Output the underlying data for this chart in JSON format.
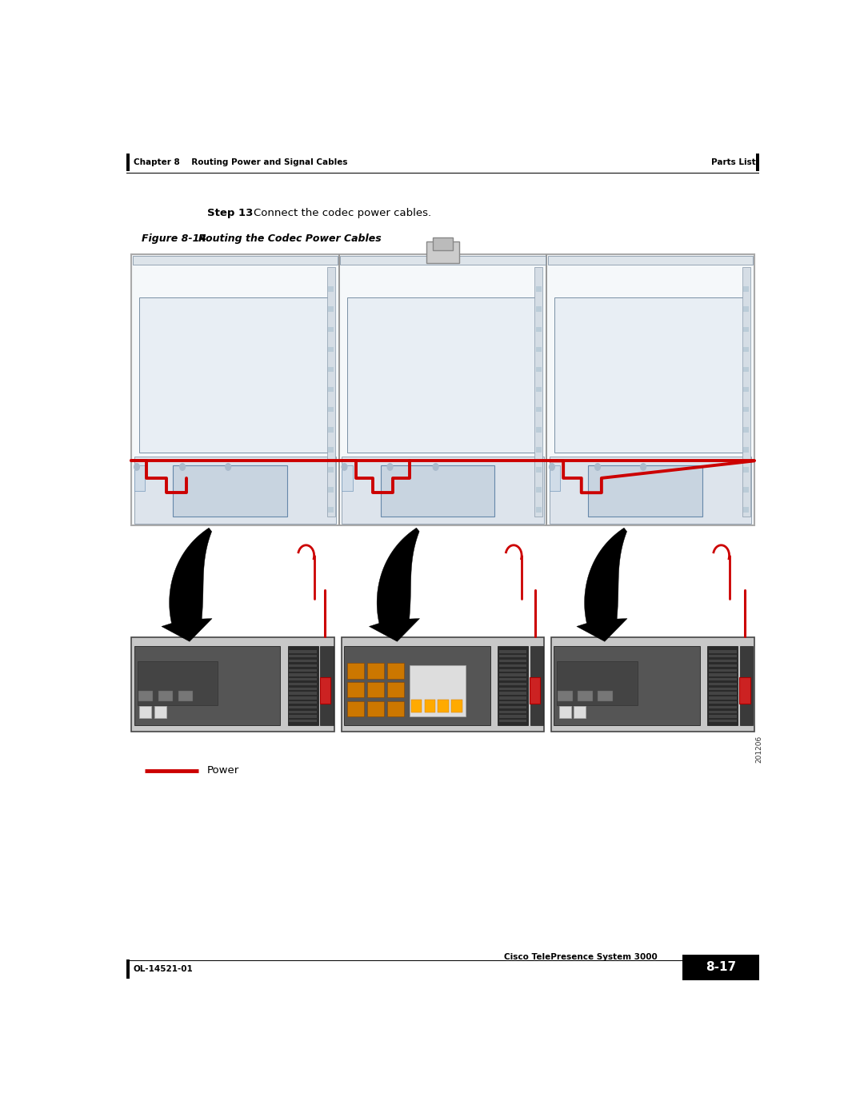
{
  "page_width": 10.8,
  "page_height": 13.97,
  "bg_color": "#ffffff",
  "header_text_left": "Chapter 8    Routing Power and Signal Cables",
  "header_text_right": "Parts List",
  "footer_text_left": "OL-14521-01",
  "footer_text_right": "Cisco TelePresence System 3000",
  "page_number": "8-17",
  "step_bold": "Step 13",
  "step_text": "    Connect the codec power cables.",
  "figure_label": "Figure 8-14",
  "figure_title": "        Routing the Codec Power Cables",
  "legend_line_color": "#cc0000",
  "legend_text": "Power",
  "side_text": "201206",
  "arrow_color": "#000000",
  "red_cable_color": "#cc0000",
  "panel_bg": "#cccccc",
  "panel_border": "#555555",
  "panel_dark": "#555555",
  "panel_vent": "#333333"
}
